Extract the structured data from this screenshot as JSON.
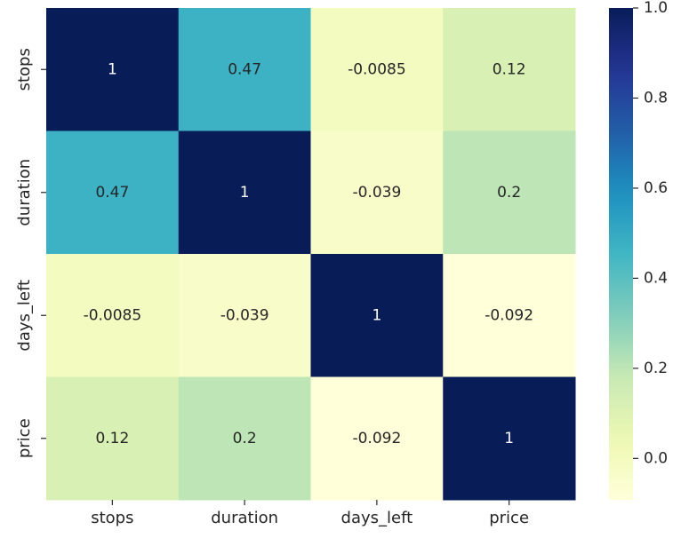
{
  "chart_data": {
    "type": "heatmap",
    "title": "",
    "xlabel": "",
    "ylabel": "",
    "x_categories": [
      "stops",
      "duration",
      "days_left",
      "price"
    ],
    "y_categories": [
      "stops",
      "duration",
      "days_left",
      "price"
    ],
    "values": [
      [
        1,
        0.47,
        -0.0085,
        0.12
      ],
      [
        0.47,
        1,
        -0.039,
        0.2
      ],
      [
        -0.0085,
        -0.039,
        1,
        -0.092
      ],
      [
        0.12,
        0.2,
        -0.092,
        1
      ]
    ],
    "annotations": [
      [
        "1",
        "0.47",
        "-0.0085",
        "0.12"
      ],
      [
        "0.47",
        "1",
        "-0.039",
        "0.2"
      ],
      [
        "-0.0085",
        "-0.039",
        "1",
        "-0.092"
      ],
      [
        "0.12",
        "0.2",
        "-0.092",
        "1"
      ]
    ],
    "colormap": "YlGnBu",
    "colorbar": {
      "range": [
        -0.092,
        1.0
      ],
      "ticks": [
        0.0,
        0.2,
        0.4,
        0.6,
        0.8,
        1.0
      ],
      "tick_labels": [
        "0.0",
        "0.2",
        "0.4",
        "0.6",
        "0.8",
        "1.0"
      ]
    }
  }
}
